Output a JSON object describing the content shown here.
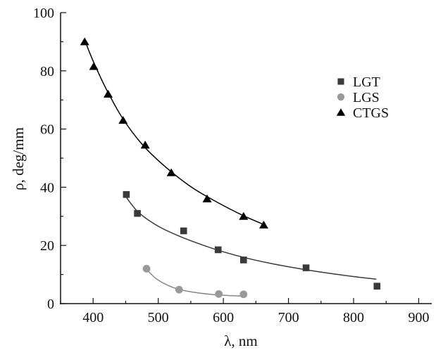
{
  "chart_data": {
    "type": "scatter",
    "xlabel": "λ, nm",
    "ylabel": "ρ, deg/mm",
    "xlim": [
      350,
      920
    ],
    "ylim": [
      0,
      100
    ],
    "x_ticks": [
      400,
      500,
      600,
      700,
      800,
      900
    ],
    "y_ticks": [
      0,
      20,
      40,
      60,
      80,
      100
    ],
    "grid": false,
    "legend_position": "top-right",
    "series": [
      {
        "name": "LGT",
        "marker": "square",
        "marker_color": "#3a3a3a",
        "line_color": "#3a3a3a",
        "x": [
          451,
          468,
          539,
          592,
          631,
          727,
          836
        ],
        "y": [
          37.5,
          31,
          25,
          18.5,
          15,
          12.3,
          6
        ],
        "fit_x": [
          451,
          470,
          500,
          530,
          560,
          600,
          640,
          680,
          720,
          760,
          800,
          835
        ],
        "fit_y": [
          36.5,
          31.3,
          26.6,
          23.4,
          20.8,
          17.8,
          15.4,
          13.5,
          11.9,
          10.5,
          9.3,
          8.4
        ]
      },
      {
        "name": "LGS",
        "marker": "circle",
        "marker_color": "#999999",
        "line_color": "#888888",
        "x": [
          482,
          532,
          593,
          631
        ],
        "y": [
          12,
          4.8,
          3.3,
          3.2
        ],
        "fit_x": [
          482,
          495,
          510,
          530,
          555,
          580,
          605,
          630
        ],
        "fit_y": [
          11.8,
          8.9,
          6.8,
          5.0,
          3.9,
          3.2,
          2.8,
          2.6
        ]
      },
      {
        "name": "CTGS",
        "marker": "triangle",
        "marker_color": "#000000",
        "line_color": "#000000",
        "x": [
          387,
          401,
          423,
          446,
          480,
          520,
          575,
          631,
          662
        ],
        "y": [
          90,
          81.5,
          72,
          63,
          54.5,
          45,
          36,
          30,
          27
        ],
        "fit_x": [
          387,
          400,
          420,
          445,
          475,
          510,
          550,
          590,
          630,
          662
        ],
        "fit_y": [
          90.6,
          83.4,
          73.8,
          63.8,
          54.8,
          47.2,
          40.2,
          34.9,
          30.3,
          27.2
        ]
      }
    ]
  }
}
